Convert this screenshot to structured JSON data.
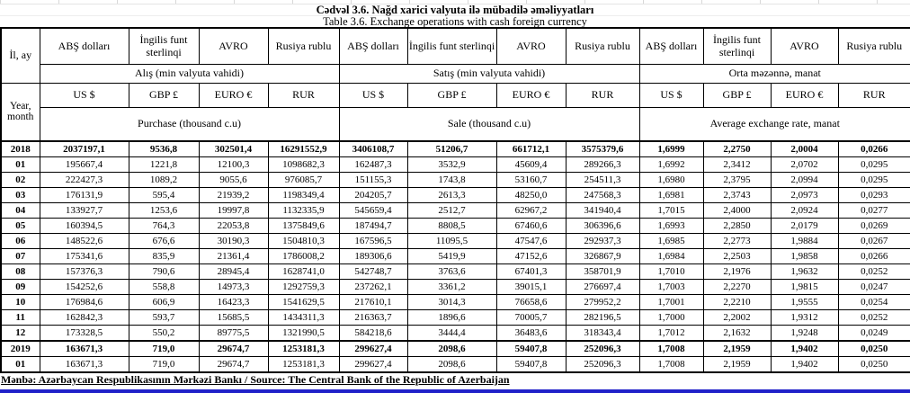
{
  "header": {
    "title_az": "Cədvəl 3.6. Nağd xarici valyuta ilə mübadilə əməliyyatları",
    "title_en": "Table  3.6. Exchange operations with cash foreign currency"
  },
  "table": {
    "row_label_header_az": "İl, ay",
    "row_label_header_en": "Year, month",
    "currency_headers": [
      "ABŞ dolları",
      "İngilis funt sterlinqi",
      "AVRO",
      "Rusiya rublu"
    ],
    "currency_codes": [
      "US $",
      "GBP £",
      "EURO €",
      "RUR"
    ],
    "sections": [
      {
        "label_az": "Alış (min valyuta vahidi)",
        "label_en": "Purchase   (thousand c.u)"
      },
      {
        "label_az": "Satış (min valyuta vahidi)",
        "label_en": "Sale (thousand c.u)"
      },
      {
        "label_az": "Orta məzənnə, manat",
        "label_en": "Average exchange rate, manat"
      }
    ],
    "rows": [
      {
        "label": "2018",
        "bold": true,
        "purchase": [
          "2037197,1",
          "9536,8",
          "302501,4",
          "16291552,9"
        ],
        "sale": [
          "3406108,7",
          "51206,7",
          "661712,1",
          "3575379,6"
        ],
        "rate": [
          "1,6999",
          "2,2750",
          "2,0004",
          "0,0266"
        ]
      },
      {
        "label": "01",
        "purchase": [
          "195667,4",
          "1221,8",
          "12100,3",
          "1098682,3"
        ],
        "sale": [
          "162487,3",
          "3532,9",
          "45609,4",
          "289266,3"
        ],
        "rate": [
          "1,6992",
          "2,3412",
          "2,0702",
          "0,0295"
        ]
      },
      {
        "label": "02",
        "purchase": [
          "222427,3",
          "1089,2",
          "9055,6",
          "976085,7"
        ],
        "sale": [
          "151155,3",
          "1743,8",
          "53160,7",
          "254511,3"
        ],
        "rate": [
          "1,6980",
          "2,3795",
          "2,0994",
          "0,0295"
        ]
      },
      {
        "label": "03",
        "purchase": [
          "176131,9",
          "595,4",
          "21939,2",
          "1198349,4"
        ],
        "sale": [
          "204205,7",
          "2613,3",
          "48250,0",
          "247568,3"
        ],
        "rate": [
          "1,6981",
          "2,3743",
          "2,0973",
          "0,0293"
        ]
      },
      {
        "label": "04",
        "purchase": [
          "133927,7",
          "1253,6",
          "19997,8",
          "1132335,9"
        ],
        "sale": [
          "545659,4",
          "2512,7",
          "62967,2",
          "341940,4"
        ],
        "rate": [
          "1,7015",
          "2,4000",
          "2,0924",
          "0,0277"
        ]
      },
      {
        "label": "05",
        "purchase": [
          "160394,5",
          "764,3",
          "22053,8",
          "1375849,6"
        ],
        "sale": [
          "187494,7",
          "8808,5",
          "67460,6",
          "306396,6"
        ],
        "rate": [
          "1,6993",
          "2,2850",
          "2,0179",
          "0,0269"
        ]
      },
      {
        "label": "06",
        "purchase": [
          "148522,6",
          "676,6",
          "30190,3",
          "1504810,3"
        ],
        "sale": [
          "167596,5",
          "11095,5",
          "47547,6",
          "292937,3"
        ],
        "rate": [
          "1,6985",
          "2,2773",
          "1,9884",
          "0,0267"
        ]
      },
      {
        "label": "07",
        "purchase": [
          "175341,6",
          "835,9",
          "21361,4",
          "1786008,2"
        ],
        "sale": [
          "189306,6",
          "5419,9",
          "47152,6",
          "326867,9"
        ],
        "rate": [
          "1,6984",
          "2,2503",
          "1,9858",
          "0,0266"
        ]
      },
      {
        "label": "08",
        "purchase": [
          "157376,3",
          "790,6",
          "28945,4",
          "1628741,0"
        ],
        "sale": [
          "542748,7",
          "3763,6",
          "67401,3",
          "358701,9"
        ],
        "rate": [
          "1,7010",
          "2,1976",
          "1,9632",
          "0,0252"
        ]
      },
      {
        "label": "09",
        "purchase": [
          "154252,6",
          "558,8",
          "14973,3",
          "1292759,3"
        ],
        "sale": [
          "237262,1",
          "3361,2",
          "39015,1",
          "276697,4"
        ],
        "rate": [
          "1,7003",
          "2,2270",
          "1,9815",
          "0,0247"
        ]
      },
      {
        "label": "10",
        "purchase": [
          "176984,6",
          "606,9",
          "16423,3",
          "1541629,5"
        ],
        "sale": [
          "217610,1",
          "3014,3",
          "76658,6",
          "279952,2"
        ],
        "rate": [
          "1,7001",
          "2,2210",
          "1,9555",
          "0,0254"
        ]
      },
      {
        "label": "11",
        "purchase": [
          "162842,3",
          "593,7",
          "15685,5",
          "1434311,3"
        ],
        "sale": [
          "216363,7",
          "1896,6",
          "70005,7",
          "282196,5"
        ],
        "rate": [
          "1,7000",
          "2,2002",
          "1,9312",
          "0,0252"
        ]
      },
      {
        "label": "12",
        "purchase": [
          "173328,5",
          "550,2",
          "89775,5",
          "1321990,5"
        ],
        "sale": [
          "584218,6",
          "3444,4",
          "36483,6",
          "318343,4"
        ],
        "rate": [
          "1,7012",
          "2,1632",
          "1,9248",
          "0,0249"
        ]
      },
      {
        "label": "2019",
        "bold": true,
        "thick_top": true,
        "purchase": [
          "163671,3",
          "719,0",
          "29674,7",
          "1253181,3"
        ],
        "sale": [
          "299627,4",
          "2098,6",
          "59407,8",
          "252096,3"
        ],
        "rate": [
          "1,7008",
          "2,1959",
          "1,9402",
          "0,0250"
        ]
      },
      {
        "label": "01",
        "purchase": [
          "163671,3",
          "719,0",
          "29674,7",
          "1253181,3"
        ],
        "sale": [
          "299627,4",
          "2098,6",
          "59407,8",
          "252096,3"
        ],
        "rate": [
          "1,7008",
          "2,1959",
          "1,9402",
          "0,0250"
        ]
      }
    ]
  },
  "footer": {
    "source": "Mənbə: Azərbaycan Respublikasının Mərkəzi Bankı / Source: The Central Bank of the Republic of Azerbaijan"
  },
  "colors": {
    "accent_line": "#2021c9"
  }
}
